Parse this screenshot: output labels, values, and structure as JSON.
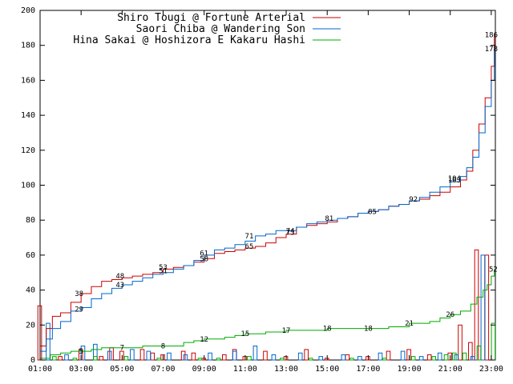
{
  "chart_data": {
    "type": "line",
    "title": "",
    "xlabel": "",
    "ylabel": "",
    "xlim": [
      1,
      23.2
    ],
    "ylim": [
      0,
      200
    ],
    "grid": false,
    "legend_position": "top-right",
    "x_ticks": [
      "01:00",
      "03:00",
      "05:00",
      "07:00",
      "09:00",
      "11:00",
      "13:00",
      "15:00",
      "17:00",
      "19:00",
      "21:00",
      "23:00"
    ],
    "y_ticks": [
      0,
      20,
      40,
      60,
      80,
      100,
      120,
      140,
      160,
      180,
      200
    ],
    "series": [
      {
        "name": "Shiro Tougi @ Fortune Arterial",
        "color": "#cc0000",
        "cumulative": [
          [
            1,
            8
          ],
          [
            1.3,
            18
          ],
          [
            1.6,
            25
          ],
          [
            2,
            27
          ],
          [
            2.5,
            33
          ],
          [
            3,
            38
          ],
          [
            3.5,
            42
          ],
          [
            4,
            45
          ],
          [
            4.5,
            46
          ],
          [
            5,
            47
          ],
          [
            5.5,
            48
          ],
          [
            6,
            49
          ],
          [
            6.5,
            50
          ],
          [
            7,
            52
          ],
          [
            7.5,
            53
          ],
          [
            8,
            54
          ],
          [
            8.5,
            56
          ],
          [
            9,
            58
          ],
          [
            9.5,
            61
          ],
          [
            10,
            62
          ],
          [
            10.5,
            63
          ],
          [
            11,
            64
          ],
          [
            11.5,
            65
          ],
          [
            12,
            67
          ],
          [
            12.5,
            70
          ],
          [
            13,
            72
          ],
          [
            13.5,
            76
          ],
          [
            14,
            77
          ],
          [
            14.5,
            78
          ],
          [
            15,
            79
          ],
          [
            15.5,
            81
          ],
          [
            16,
            82
          ],
          [
            16.5,
            84
          ],
          [
            17,
            85
          ],
          [
            17.5,
            86
          ],
          [
            18,
            88
          ],
          [
            18.5,
            89
          ],
          [
            19,
            91
          ],
          [
            19.5,
            92
          ],
          [
            20,
            94
          ],
          [
            20.5,
            96
          ],
          [
            21,
            99
          ],
          [
            21.5,
            103
          ],
          [
            21.8,
            108
          ],
          [
            22.1,
            120
          ],
          [
            22.4,
            135
          ],
          [
            22.7,
            150
          ],
          [
            23,
            168
          ],
          [
            23.15,
            186
          ]
        ],
        "value_labels": [
          {
            "x": 2.9,
            "y": 38,
            "text": "38"
          },
          {
            "x": 4.9,
            "y": 48,
            "text": "48"
          },
          {
            "x": 7,
            "y": 53,
            "text": "53"
          },
          {
            "x": 9,
            "y": 58,
            "text": "58"
          },
          {
            "x": 11.2,
            "y": 65,
            "text": "65"
          },
          {
            "x": 13.2,
            "y": 73,
            "text": "73"
          },
          {
            "x": 15.1,
            "y": 81,
            "text": "81"
          },
          {
            "x": 17.2,
            "y": 85,
            "text": "85"
          },
          {
            "x": 19.2,
            "y": 92,
            "text": "92"
          },
          {
            "x": 21.2,
            "y": 103,
            "text": "103"
          },
          {
            "x": 23,
            "y": 186,
            "text": "186"
          }
        ],
        "hourly_bars": [
          [
            1,
            31
          ],
          [
            2,
            2
          ],
          [
            3,
            6
          ],
          [
            4,
            2
          ],
          [
            4.5,
            7
          ],
          [
            5,
            5
          ],
          [
            6,
            6
          ],
          [
            6.5,
            4
          ],
          [
            7,
            3
          ],
          [
            8,
            5
          ],
          [
            8.5,
            4
          ],
          [
            9,
            1
          ],
          [
            10,
            3
          ],
          [
            10.5,
            6
          ],
          [
            11,
            2
          ],
          [
            12,
            5
          ],
          [
            13,
            2
          ],
          [
            14,
            6
          ],
          [
            15,
            1
          ],
          [
            16,
            3
          ],
          [
            17,
            2
          ],
          [
            18,
            5
          ],
          [
            19,
            6
          ],
          [
            20,
            3
          ],
          [
            21,
            4
          ],
          [
            21.5,
            20
          ],
          [
            22,
            10
          ],
          [
            22.3,
            63
          ],
          [
            22.8,
            60
          ]
        ]
      },
      {
        "name": "Saori Chiba @ Wandering Son",
        "color": "#0066cc",
        "cumulative": [
          [
            1,
            5
          ],
          [
            1.3,
            12
          ],
          [
            1.6,
            18
          ],
          [
            2,
            22
          ],
          [
            2.5,
            28
          ],
          [
            3,
            30
          ],
          [
            3.5,
            35
          ],
          [
            4,
            38
          ],
          [
            4.5,
            41
          ],
          [
            5,
            43
          ],
          [
            5.5,
            45
          ],
          [
            6,
            47
          ],
          [
            6.5,
            49
          ],
          [
            7,
            50
          ],
          [
            7.5,
            52
          ],
          [
            8,
            54
          ],
          [
            8.5,
            57
          ],
          [
            9,
            60
          ],
          [
            9.5,
            63
          ],
          [
            10,
            64
          ],
          [
            10.5,
            66
          ],
          [
            11,
            68
          ],
          [
            11.5,
            71
          ],
          [
            12,
            72
          ],
          [
            12.5,
            74
          ],
          [
            13,
            74
          ],
          [
            13.5,
            76
          ],
          [
            14,
            78
          ],
          [
            14.5,
            79
          ],
          [
            15,
            80
          ],
          [
            15.5,
            81
          ],
          [
            16,
            82
          ],
          [
            16.5,
            84
          ],
          [
            17,
            85
          ],
          [
            17.5,
            86
          ],
          [
            18,
            88
          ],
          [
            18.5,
            89
          ],
          [
            19,
            91
          ],
          [
            19.5,
            93
          ],
          [
            20,
            96
          ],
          [
            20.5,
            99
          ],
          [
            21,
            102
          ],
          [
            21.5,
            105
          ],
          [
            21.8,
            110
          ],
          [
            22.1,
            116
          ],
          [
            22.4,
            130
          ],
          [
            22.7,
            145
          ],
          [
            23,
            160
          ],
          [
            23.15,
            178
          ]
        ],
        "value_labels": [
          {
            "x": 2.9,
            "y": 29,
            "text": "29"
          },
          {
            "x": 4.9,
            "y": 43,
            "text": "43"
          },
          {
            "x": 7,
            "y": 51,
            "text": "51"
          },
          {
            "x": 9,
            "y": 61,
            "text": "61"
          },
          {
            "x": 11.2,
            "y": 71,
            "text": "71"
          },
          {
            "x": 13.2,
            "y": 74,
            "text": "74"
          },
          {
            "x": 21.2,
            "y": 104,
            "text": "104"
          },
          {
            "x": 23,
            "y": 178,
            "text": "178"
          }
        ],
        "hourly_bars": [
          [
            1.3,
            21
          ],
          [
            2.2,
            3
          ],
          [
            3,
            8
          ],
          [
            3.6,
            9
          ],
          [
            4.3,
            5
          ],
          [
            5.4,
            6
          ],
          [
            6.2,
            5
          ],
          [
            7.2,
            4
          ],
          [
            8,
            3
          ],
          [
            9.2,
            4
          ],
          [
            10.4,
            5
          ],
          [
            11.4,
            8
          ],
          [
            12.3,
            3
          ],
          [
            13.6,
            4
          ],
          [
            14.6,
            2
          ],
          [
            15.7,
            3
          ],
          [
            16.5,
            2
          ],
          [
            17.5,
            4
          ],
          [
            18.6,
            5
          ],
          [
            19.5,
            2
          ],
          [
            20.4,
            4
          ],
          [
            21.2,
            3
          ],
          [
            22,
            2
          ],
          [
            22.5,
            60
          ]
        ]
      },
      {
        "name": "Hina Sakai @ Hoshizora E Kakaru Hashi",
        "color": "#00aa00",
        "cumulative": [
          [
            1,
            1
          ],
          [
            1.5,
            3
          ],
          [
            2,
            4
          ],
          [
            2.5,
            5
          ],
          [
            3,
            5
          ],
          [
            3.5,
            6
          ],
          [
            4,
            7
          ],
          [
            5,
            7
          ],
          [
            6,
            8
          ],
          [
            7,
            8
          ],
          [
            8,
            10
          ],
          [
            8.5,
            11
          ],
          [
            9,
            12
          ],
          [
            10,
            13
          ],
          [
            10.5,
            14
          ],
          [
            11,
            15
          ],
          [
            12,
            16
          ],
          [
            12.5,
            16
          ],
          [
            13,
            17
          ],
          [
            14,
            17
          ],
          [
            15,
            18
          ],
          [
            16,
            18
          ],
          [
            17,
            18
          ],
          [
            18,
            19
          ],
          [
            19,
            21
          ],
          [
            19.5,
            21
          ],
          [
            20,
            22
          ],
          [
            20.5,
            24
          ],
          [
            21,
            26
          ],
          [
            21.5,
            28
          ],
          [
            22,
            32
          ],
          [
            22.3,
            36
          ],
          [
            22.6,
            40
          ],
          [
            22.8,
            43
          ],
          [
            23,
            48
          ],
          [
            23.15,
            52
          ]
        ],
        "value_labels": [
          {
            "x": 3,
            "y": 5,
            "text": "5"
          },
          {
            "x": 5,
            "y": 7,
            "text": "7"
          },
          {
            "x": 7,
            "y": 8,
            "text": "8"
          },
          {
            "x": 9,
            "y": 12,
            "text": "12"
          },
          {
            "x": 11,
            "y": 15,
            "text": "15"
          },
          {
            "x": 13,
            "y": 17,
            "text": "17"
          },
          {
            "x": 15,
            "y": 18,
            "text": "18"
          },
          {
            "x": 17,
            "y": 18,
            "text": "18"
          },
          {
            "x": 19,
            "y": 21,
            "text": "21"
          },
          {
            "x": 21,
            "y": 26,
            "text": "26"
          },
          {
            "x": 23.1,
            "y": 52,
            "text": "52"
          }
        ],
        "hourly_bars": [
          [
            1.5,
            2
          ],
          [
            2.5,
            1
          ],
          [
            3.5,
            2
          ],
          [
            5,
            2
          ],
          [
            6.6,
            1
          ],
          [
            8.6,
            1
          ],
          [
            9.5,
            1
          ],
          [
            11,
            2
          ],
          [
            12.6,
            1
          ],
          [
            14,
            1
          ],
          [
            16,
            1
          ],
          [
            17.6,
            1
          ],
          [
            19,
            2
          ],
          [
            20,
            2
          ],
          [
            20.6,
            3
          ],
          [
            21,
            4
          ],
          [
            21.5,
            4
          ],
          [
            22.2,
            8
          ],
          [
            22.9,
            21
          ]
        ]
      }
    ]
  }
}
